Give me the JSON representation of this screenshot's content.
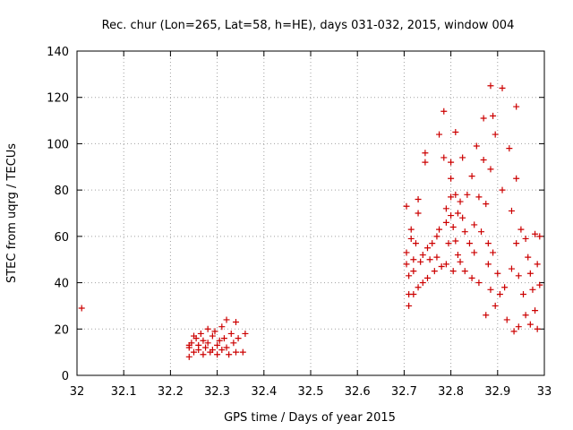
{
  "chart_data": {
    "type": "scatter",
    "title": "Rec. chur (Lon=265, Lat=58, h=HE), days 031-032, 2015, window 004",
    "xlabel": "GPS time / Days of year 2015",
    "ylabel": "STEC from uqrg / TECUs",
    "xlim": [
      32,
      33
    ],
    "ylim": [
      0,
      140
    ],
    "xticks": [
      "32",
      "32.1",
      "32.2",
      "32.3",
      "32.4",
      "32.5",
      "32.6",
      "32.7",
      "32.8",
      "32.9",
      "33"
    ],
    "yticks": [
      "0",
      "20",
      "40",
      "60",
      "80",
      "100",
      "120",
      "140"
    ],
    "grid": true,
    "marker": "plus",
    "color": "#cc0000",
    "series": [
      {
        "points": [
          [
            32.01,
            29
          ],
          [
            32.24,
            13
          ],
          [
            32.24,
            12
          ],
          [
            32.24,
            8
          ],
          [
            32.245,
            14
          ],
          [
            32.25,
            17
          ],
          [
            32.25,
            10
          ],
          [
            32.255,
            16
          ],
          [
            32.26,
            13
          ],
          [
            32.26,
            11
          ],
          [
            32.265,
            18
          ],
          [
            32.27,
            9
          ],
          [
            32.27,
            15
          ],
          [
            32.275,
            12
          ],
          [
            32.28,
            20
          ],
          [
            32.28,
            14
          ],
          [
            32.285,
            10
          ],
          [
            32.29,
            17
          ],
          [
            32.29,
            11
          ],
          [
            32.295,
            19
          ],
          [
            32.3,
            13
          ],
          [
            32.3,
            9
          ],
          [
            32.305,
            15
          ],
          [
            32.31,
            21
          ],
          [
            32.31,
            11
          ],
          [
            32.315,
            16
          ],
          [
            32.32,
            24
          ],
          [
            32.32,
            12
          ],
          [
            32.325,
            9
          ],
          [
            32.33,
            18
          ],
          [
            32.335,
            14
          ],
          [
            32.34,
            23
          ],
          [
            32.34,
            10
          ],
          [
            32.345,
            16
          ],
          [
            32.355,
            10
          ],
          [
            32.36,
            18
          ],
          [
            32.705,
            73
          ],
          [
            32.705,
            53
          ],
          [
            32.705,
            48
          ],
          [
            32.71,
            43
          ],
          [
            32.71,
            35
          ],
          [
            32.71,
            30
          ],
          [
            32.715,
            63
          ],
          [
            32.715,
            59
          ],
          [
            32.72,
            50
          ],
          [
            32.72,
            45
          ],
          [
            32.72,
            35
          ],
          [
            32.725,
            57
          ],
          [
            32.73,
            70
          ],
          [
            32.73,
            76
          ],
          [
            32.73,
            38
          ],
          [
            32.735,
            49
          ],
          [
            32.74,
            52
          ],
          [
            32.74,
            40
          ],
          [
            32.745,
            96
          ],
          [
            32.745,
            92
          ],
          [
            32.75,
            55
          ],
          [
            32.75,
            42
          ],
          [
            32.755,
            50
          ],
          [
            32.76,
            57
          ],
          [
            32.765,
            45
          ],
          [
            32.77,
            60
          ],
          [
            32.77,
            51
          ],
          [
            32.775,
            104
          ],
          [
            32.775,
            63
          ],
          [
            32.78,
            47
          ],
          [
            32.785,
            114
          ],
          [
            32.785,
            94
          ],
          [
            32.79,
            72
          ],
          [
            32.79,
            66
          ],
          [
            32.79,
            48
          ],
          [
            32.795,
            57
          ],
          [
            32.8,
            92
          ],
          [
            32.8,
            85
          ],
          [
            32.8,
            77
          ],
          [
            32.8,
            69
          ],
          [
            32.805,
            64
          ],
          [
            32.805,
            45
          ],
          [
            32.81,
            105
          ],
          [
            32.81,
            78
          ],
          [
            32.81,
            58
          ],
          [
            32.815,
            70
          ],
          [
            32.815,
            52
          ],
          [
            32.82,
            75
          ],
          [
            32.82,
            49
          ],
          [
            32.825,
            94
          ],
          [
            32.825,
            68
          ],
          [
            32.83,
            62
          ],
          [
            32.83,
            45
          ],
          [
            32.835,
            78
          ],
          [
            32.84,
            57
          ],
          [
            32.845,
            86
          ],
          [
            32.845,
            42
          ],
          [
            32.85,
            65
          ],
          [
            32.85,
            53
          ],
          [
            32.855,
            99
          ],
          [
            32.86,
            77
          ],
          [
            32.86,
            40
          ],
          [
            32.865,
            62
          ],
          [
            32.87,
            111
          ],
          [
            32.87,
            93
          ],
          [
            32.875,
            74
          ],
          [
            32.875,
            26
          ],
          [
            32.88,
            57
          ],
          [
            32.88,
            48
          ],
          [
            32.885,
            125
          ],
          [
            32.885,
            89
          ],
          [
            32.885,
            37
          ],
          [
            32.89,
            112
          ],
          [
            32.89,
            53
          ],
          [
            32.895,
            104
          ],
          [
            32.895,
            30
          ],
          [
            32.9,
            44
          ],
          [
            32.905,
            35
          ],
          [
            32.91,
            124
          ],
          [
            32.91,
            80
          ],
          [
            32.915,
            38
          ],
          [
            32.92,
            24
          ],
          [
            32.925,
            98
          ],
          [
            32.93,
            71
          ],
          [
            32.93,
            46
          ],
          [
            32.935,
            19
          ],
          [
            32.94,
            116
          ],
          [
            32.94,
            85
          ],
          [
            32.94,
            57
          ],
          [
            32.945,
            43
          ],
          [
            32.945,
            21
          ],
          [
            32.95,
            63
          ],
          [
            32.955,
            35
          ],
          [
            32.96,
            59
          ],
          [
            32.96,
            26
          ],
          [
            32.965,
            51
          ],
          [
            32.97,
            44
          ],
          [
            32.97,
            22
          ],
          [
            32.975,
            37
          ],
          [
            32.98,
            61
          ],
          [
            32.98,
            28
          ],
          [
            32.985,
            48
          ],
          [
            32.985,
            20
          ],
          [
            32.99,
            60
          ],
          [
            32.99,
            39
          ]
        ]
      }
    ]
  }
}
